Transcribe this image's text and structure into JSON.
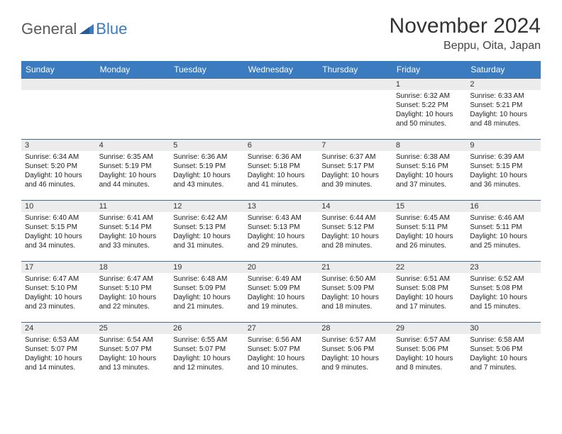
{
  "logo": {
    "part1": "General",
    "part2": "Blue"
  },
  "title": "November 2024",
  "location": "Beppu, Oita, Japan",
  "day_headers": [
    "Sunday",
    "Monday",
    "Tuesday",
    "Wednesday",
    "Thursday",
    "Friday",
    "Saturday"
  ],
  "colors": {
    "header_bg": "#3b7bbf",
    "header_text": "#ffffff",
    "daynum_bg": "#ececec",
    "border": "#4a6a8a",
    "text": "#222222",
    "logo_gray": "#5a5a5a",
    "logo_blue": "#3b7bbf"
  },
  "weeks": [
    [
      {
        "n": "",
        "sr": "",
        "ss": "",
        "dl": ""
      },
      {
        "n": "",
        "sr": "",
        "ss": "",
        "dl": ""
      },
      {
        "n": "",
        "sr": "",
        "ss": "",
        "dl": ""
      },
      {
        "n": "",
        "sr": "",
        "ss": "",
        "dl": ""
      },
      {
        "n": "",
        "sr": "",
        "ss": "",
        "dl": ""
      },
      {
        "n": "1",
        "sr": "Sunrise: 6:32 AM",
        "ss": "Sunset: 5:22 PM",
        "dl": "Daylight: 10 hours and 50 minutes."
      },
      {
        "n": "2",
        "sr": "Sunrise: 6:33 AM",
        "ss": "Sunset: 5:21 PM",
        "dl": "Daylight: 10 hours and 48 minutes."
      }
    ],
    [
      {
        "n": "3",
        "sr": "Sunrise: 6:34 AM",
        "ss": "Sunset: 5:20 PM",
        "dl": "Daylight: 10 hours and 46 minutes."
      },
      {
        "n": "4",
        "sr": "Sunrise: 6:35 AM",
        "ss": "Sunset: 5:19 PM",
        "dl": "Daylight: 10 hours and 44 minutes."
      },
      {
        "n": "5",
        "sr": "Sunrise: 6:36 AM",
        "ss": "Sunset: 5:19 PM",
        "dl": "Daylight: 10 hours and 43 minutes."
      },
      {
        "n": "6",
        "sr": "Sunrise: 6:36 AM",
        "ss": "Sunset: 5:18 PM",
        "dl": "Daylight: 10 hours and 41 minutes."
      },
      {
        "n": "7",
        "sr": "Sunrise: 6:37 AM",
        "ss": "Sunset: 5:17 PM",
        "dl": "Daylight: 10 hours and 39 minutes."
      },
      {
        "n": "8",
        "sr": "Sunrise: 6:38 AM",
        "ss": "Sunset: 5:16 PM",
        "dl": "Daylight: 10 hours and 37 minutes."
      },
      {
        "n": "9",
        "sr": "Sunrise: 6:39 AM",
        "ss": "Sunset: 5:15 PM",
        "dl": "Daylight: 10 hours and 36 minutes."
      }
    ],
    [
      {
        "n": "10",
        "sr": "Sunrise: 6:40 AM",
        "ss": "Sunset: 5:15 PM",
        "dl": "Daylight: 10 hours and 34 minutes."
      },
      {
        "n": "11",
        "sr": "Sunrise: 6:41 AM",
        "ss": "Sunset: 5:14 PM",
        "dl": "Daylight: 10 hours and 33 minutes."
      },
      {
        "n": "12",
        "sr": "Sunrise: 6:42 AM",
        "ss": "Sunset: 5:13 PM",
        "dl": "Daylight: 10 hours and 31 minutes."
      },
      {
        "n": "13",
        "sr": "Sunrise: 6:43 AM",
        "ss": "Sunset: 5:13 PM",
        "dl": "Daylight: 10 hours and 29 minutes."
      },
      {
        "n": "14",
        "sr": "Sunrise: 6:44 AM",
        "ss": "Sunset: 5:12 PM",
        "dl": "Daylight: 10 hours and 28 minutes."
      },
      {
        "n": "15",
        "sr": "Sunrise: 6:45 AM",
        "ss": "Sunset: 5:11 PM",
        "dl": "Daylight: 10 hours and 26 minutes."
      },
      {
        "n": "16",
        "sr": "Sunrise: 6:46 AM",
        "ss": "Sunset: 5:11 PM",
        "dl": "Daylight: 10 hours and 25 minutes."
      }
    ],
    [
      {
        "n": "17",
        "sr": "Sunrise: 6:47 AM",
        "ss": "Sunset: 5:10 PM",
        "dl": "Daylight: 10 hours and 23 minutes."
      },
      {
        "n": "18",
        "sr": "Sunrise: 6:47 AM",
        "ss": "Sunset: 5:10 PM",
        "dl": "Daylight: 10 hours and 22 minutes."
      },
      {
        "n": "19",
        "sr": "Sunrise: 6:48 AM",
        "ss": "Sunset: 5:09 PM",
        "dl": "Daylight: 10 hours and 21 minutes."
      },
      {
        "n": "20",
        "sr": "Sunrise: 6:49 AM",
        "ss": "Sunset: 5:09 PM",
        "dl": "Daylight: 10 hours and 19 minutes."
      },
      {
        "n": "21",
        "sr": "Sunrise: 6:50 AM",
        "ss": "Sunset: 5:09 PM",
        "dl": "Daylight: 10 hours and 18 minutes."
      },
      {
        "n": "22",
        "sr": "Sunrise: 6:51 AM",
        "ss": "Sunset: 5:08 PM",
        "dl": "Daylight: 10 hours and 17 minutes."
      },
      {
        "n": "23",
        "sr": "Sunrise: 6:52 AM",
        "ss": "Sunset: 5:08 PM",
        "dl": "Daylight: 10 hours and 15 minutes."
      }
    ],
    [
      {
        "n": "24",
        "sr": "Sunrise: 6:53 AM",
        "ss": "Sunset: 5:07 PM",
        "dl": "Daylight: 10 hours and 14 minutes."
      },
      {
        "n": "25",
        "sr": "Sunrise: 6:54 AM",
        "ss": "Sunset: 5:07 PM",
        "dl": "Daylight: 10 hours and 13 minutes."
      },
      {
        "n": "26",
        "sr": "Sunrise: 6:55 AM",
        "ss": "Sunset: 5:07 PM",
        "dl": "Daylight: 10 hours and 12 minutes."
      },
      {
        "n": "27",
        "sr": "Sunrise: 6:56 AM",
        "ss": "Sunset: 5:07 PM",
        "dl": "Daylight: 10 hours and 10 minutes."
      },
      {
        "n": "28",
        "sr": "Sunrise: 6:57 AM",
        "ss": "Sunset: 5:06 PM",
        "dl": "Daylight: 10 hours and 9 minutes."
      },
      {
        "n": "29",
        "sr": "Sunrise: 6:57 AM",
        "ss": "Sunset: 5:06 PM",
        "dl": "Daylight: 10 hours and 8 minutes."
      },
      {
        "n": "30",
        "sr": "Sunrise: 6:58 AM",
        "ss": "Sunset: 5:06 PM",
        "dl": "Daylight: 10 hours and 7 minutes."
      }
    ]
  ]
}
